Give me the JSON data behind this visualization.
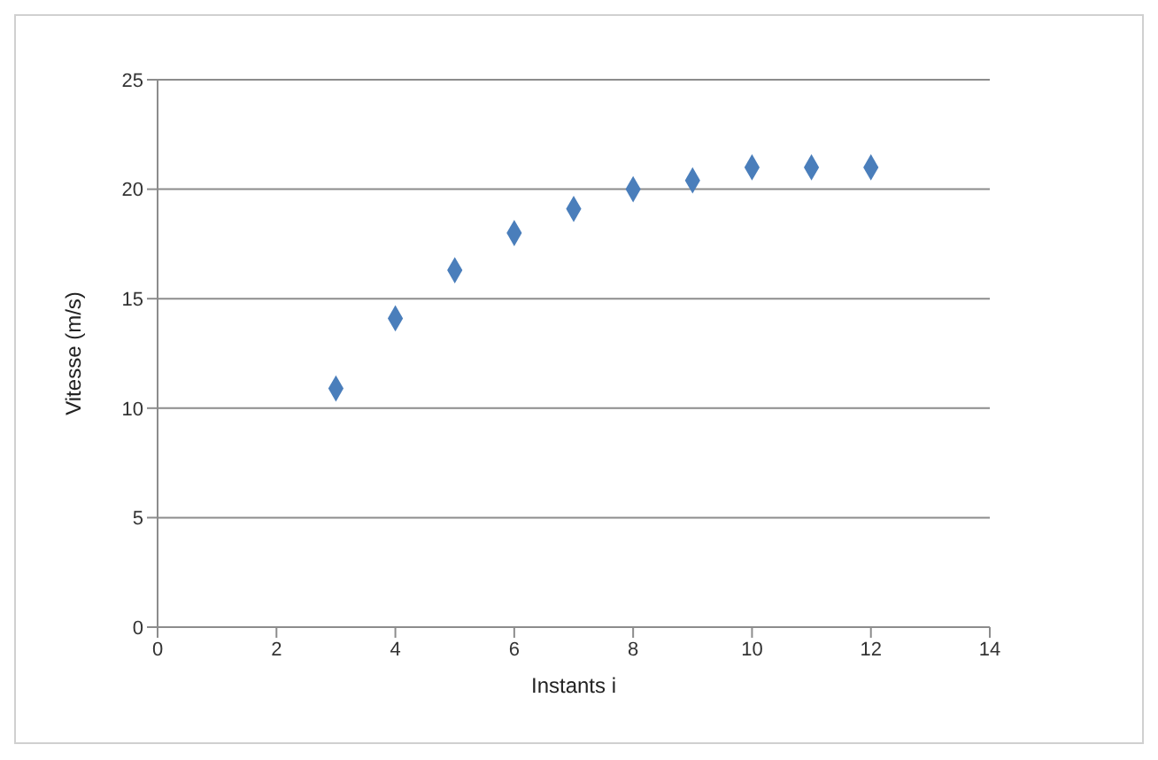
{
  "chart_data": {
    "type": "scatter",
    "xlabel": "Instants i",
    "ylabel": "Vitesse (m/s)",
    "x": [
      3,
      4,
      5,
      6,
      7,
      8,
      9,
      10,
      11,
      12
    ],
    "series": [
      {
        "color": "#4a7ebb",
        "values": [
          10.9,
          14.1,
          16.3,
          18.0,
          19.1,
          20.0,
          20.4,
          21.0,
          21.0,
          21.0
        ]
      }
    ],
    "xlim": [
      0,
      14
    ],
    "xticks": [
      0,
      2,
      4,
      6,
      8,
      10,
      12,
      14
    ],
    "ylim": [
      0,
      25
    ],
    "yticks": [
      0,
      5,
      10,
      15,
      20,
      25
    ],
    "grid": "y",
    "marker": "diamond",
    "legend": false
  }
}
